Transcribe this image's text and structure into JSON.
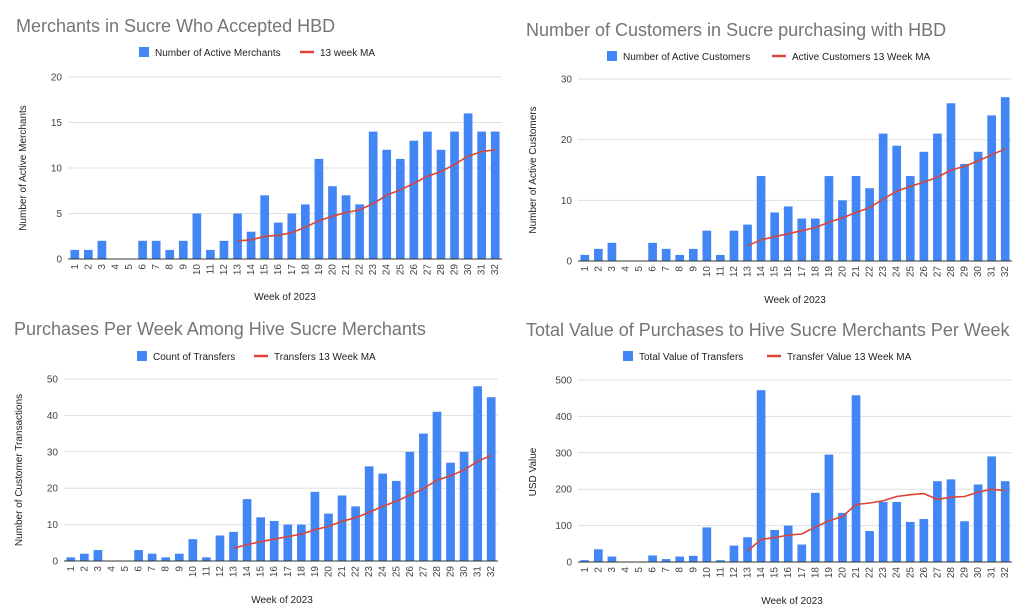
{
  "chart_data": [
    {
      "type": "bar",
      "title": "Merchants in Sucre Who Accepted HBD",
      "xlabel": "Week of 2023",
      "ylabel": "Number of Active Merchants",
      "ylim": [
        0,
        20
      ],
      "yticks": [
        0,
        5,
        10,
        15,
        20
      ],
      "categories": [
        "1",
        "2",
        "3",
        "4",
        "5",
        "6",
        "7",
        "8",
        "9",
        "10",
        "11",
        "12",
        "13",
        "14",
        "15",
        "16",
        "17",
        "18",
        "19",
        "20",
        "21",
        "22",
        "23",
        "24",
        "25",
        "26",
        "27",
        "28",
        "29",
        "30",
        "31",
        "32"
      ],
      "series": [
        {
          "name": "Number of Active Merchants",
          "kind": "bar",
          "color": "#4285f4",
          "values": [
            1,
            1,
            2,
            0,
            0,
            2,
            2,
            1,
            2,
            5,
            1,
            2,
            5,
            3,
            7,
            4,
            5,
            6,
            11,
            8,
            7,
            6,
            14,
            12,
            11,
            13,
            14,
            12,
            14,
            16,
            14,
            14
          ]
        },
        {
          "name": "13 week MA",
          "kind": "line",
          "color": "#db4437",
          "values": [
            null,
            null,
            null,
            null,
            null,
            null,
            null,
            null,
            null,
            null,
            null,
            null,
            2.0,
            2.1,
            2.5,
            2.6,
            2.9,
            3.5,
            4.2,
            4.7,
            5.1,
            5.4,
            6.1,
            7.0,
            7.6,
            8.3,
            9.1,
            9.6,
            10.4,
            11.3,
            11.8,
            12.0
          ]
        }
      ]
    },
    {
      "type": "bar",
      "title": "Number of Customers in Sucre purchasing with HBD",
      "xlabel": "Week of 2023",
      "ylabel": "Number of Active Customers",
      "ylim": [
        0,
        30
      ],
      "yticks": [
        0,
        10,
        20,
        30
      ],
      "categories": [
        "1",
        "2",
        "3",
        "4",
        "5",
        "6",
        "7",
        "8",
        "9",
        "10",
        "11",
        "12",
        "13",
        "14",
        "15",
        "16",
        "17",
        "18",
        "19",
        "20",
        "21",
        "22",
        "23",
        "24",
        "25",
        "26",
        "27",
        "28",
        "29",
        "30",
        "31",
        "32"
      ],
      "series": [
        {
          "name": "Number of Active Customers",
          "kind": "bar",
          "color": "#4285f4",
          "values": [
            1,
            2,
            3,
            0,
            0,
            3,
            2,
            1,
            2,
            5,
            1,
            5,
            6,
            14,
            8,
            9,
            7,
            7,
            14,
            10,
            14,
            12,
            21,
            19,
            14,
            18,
            21,
            26,
            16,
            18,
            24,
            27
          ]
        },
        {
          "name": "Active Customers 13 Week MA",
          "kind": "line",
          "color": "#db4437",
          "values": [
            null,
            null,
            null,
            null,
            null,
            null,
            null,
            null,
            null,
            null,
            null,
            null,
            2.5,
            3.5,
            4.0,
            4.5,
            5.0,
            5.5,
            6.4,
            7.1,
            8.0,
            8.8,
            10.2,
            11.5,
            12.3,
            13.0,
            13.8,
            15.0,
            15.6,
            16.5,
            17.5,
            18.5
          ]
        }
      ]
    },
    {
      "type": "bar",
      "title": "Purchases Per Week Among Hive Sucre Merchants",
      "xlabel": "Week of 2023",
      "ylabel": "Number of Customer Transactions",
      "ylim": [
        0,
        50
      ],
      "yticks": [
        0,
        10,
        20,
        30,
        40,
        50
      ],
      "categories": [
        "1",
        "2",
        "3",
        "4",
        "5",
        "6",
        "7",
        "8",
        "9",
        "10",
        "11",
        "12",
        "13",
        "14",
        "15",
        "16",
        "17",
        "18",
        "19",
        "20",
        "21",
        "22",
        "23",
        "24",
        "25",
        "26",
        "27",
        "28",
        "29",
        "30",
        "31",
        "32"
      ],
      "series": [
        {
          "name": "Count of Transfers",
          "kind": "bar",
          "color": "#4285f4",
          "values": [
            1,
            2,
            3,
            0,
            0,
            3,
            2,
            1,
            2,
            6,
            1,
            7,
            8,
            17,
            12,
            11,
            10,
            10,
            19,
            13,
            18,
            15,
            26,
            24,
            22,
            30,
            35,
            41,
            27,
            30,
            48,
            45
          ]
        },
        {
          "name": "Transfers 13 Week MA",
          "kind": "line",
          "color": "#db4437",
          "values": [
            null,
            null,
            null,
            null,
            null,
            null,
            null,
            null,
            null,
            null,
            null,
            null,
            3.5,
            4.5,
            5.3,
            6.0,
            6.7,
            7.4,
            8.6,
            9.5,
            10.9,
            11.9,
            13.4,
            15.0,
            16.4,
            18.1,
            19.9,
            22.2,
            23.4,
            25.0,
            27.4,
            29.0
          ]
        }
      ]
    },
    {
      "type": "bar",
      "title": "Total Value of Purchases to Hive Sucre Merchants Per Week",
      "xlabel": "Week of 2023",
      "ylabel": "USD Value",
      "ylim": [
        0,
        500
      ],
      "yticks": [
        0,
        100,
        200,
        300,
        400,
        500
      ],
      "categories": [
        "1",
        "2",
        "3",
        "4",
        "5",
        "6",
        "7",
        "8",
        "9",
        "10",
        "11",
        "12",
        "13",
        "14",
        "15",
        "16",
        "17",
        "18",
        "19",
        "20",
        "21",
        "22",
        "23",
        "24",
        "25",
        "26",
        "27",
        "28",
        "29",
        "30",
        "31",
        "32"
      ],
      "series": [
        {
          "name": "Total Value of Transfers",
          "kind": "bar",
          "color": "#4285f4",
          "values": [
            5,
            35,
            15,
            0,
            0,
            18,
            8,
            15,
            17,
            95,
            5,
            45,
            68,
            472,
            88,
            100,
            48,
            190,
            295,
            135,
            458,
            85,
            165,
            165,
            110,
            118,
            222,
            227,
            112,
            213,
            290,
            222
          ]
        },
        {
          "name": "Transfer Value 13 Week MA",
          "kind": "line",
          "color": "#db4437",
          "values": [
            null,
            null,
            null,
            null,
            null,
            null,
            null,
            null,
            null,
            null,
            null,
            null,
            30,
            62,
            67,
            74,
            77,
            96,
            113,
            125,
            158,
            162,
            168,
            180,
            185,
            188,
            172,
            178,
            180,
            192,
            200,
            196
          ]
        }
      ]
    }
  ]
}
